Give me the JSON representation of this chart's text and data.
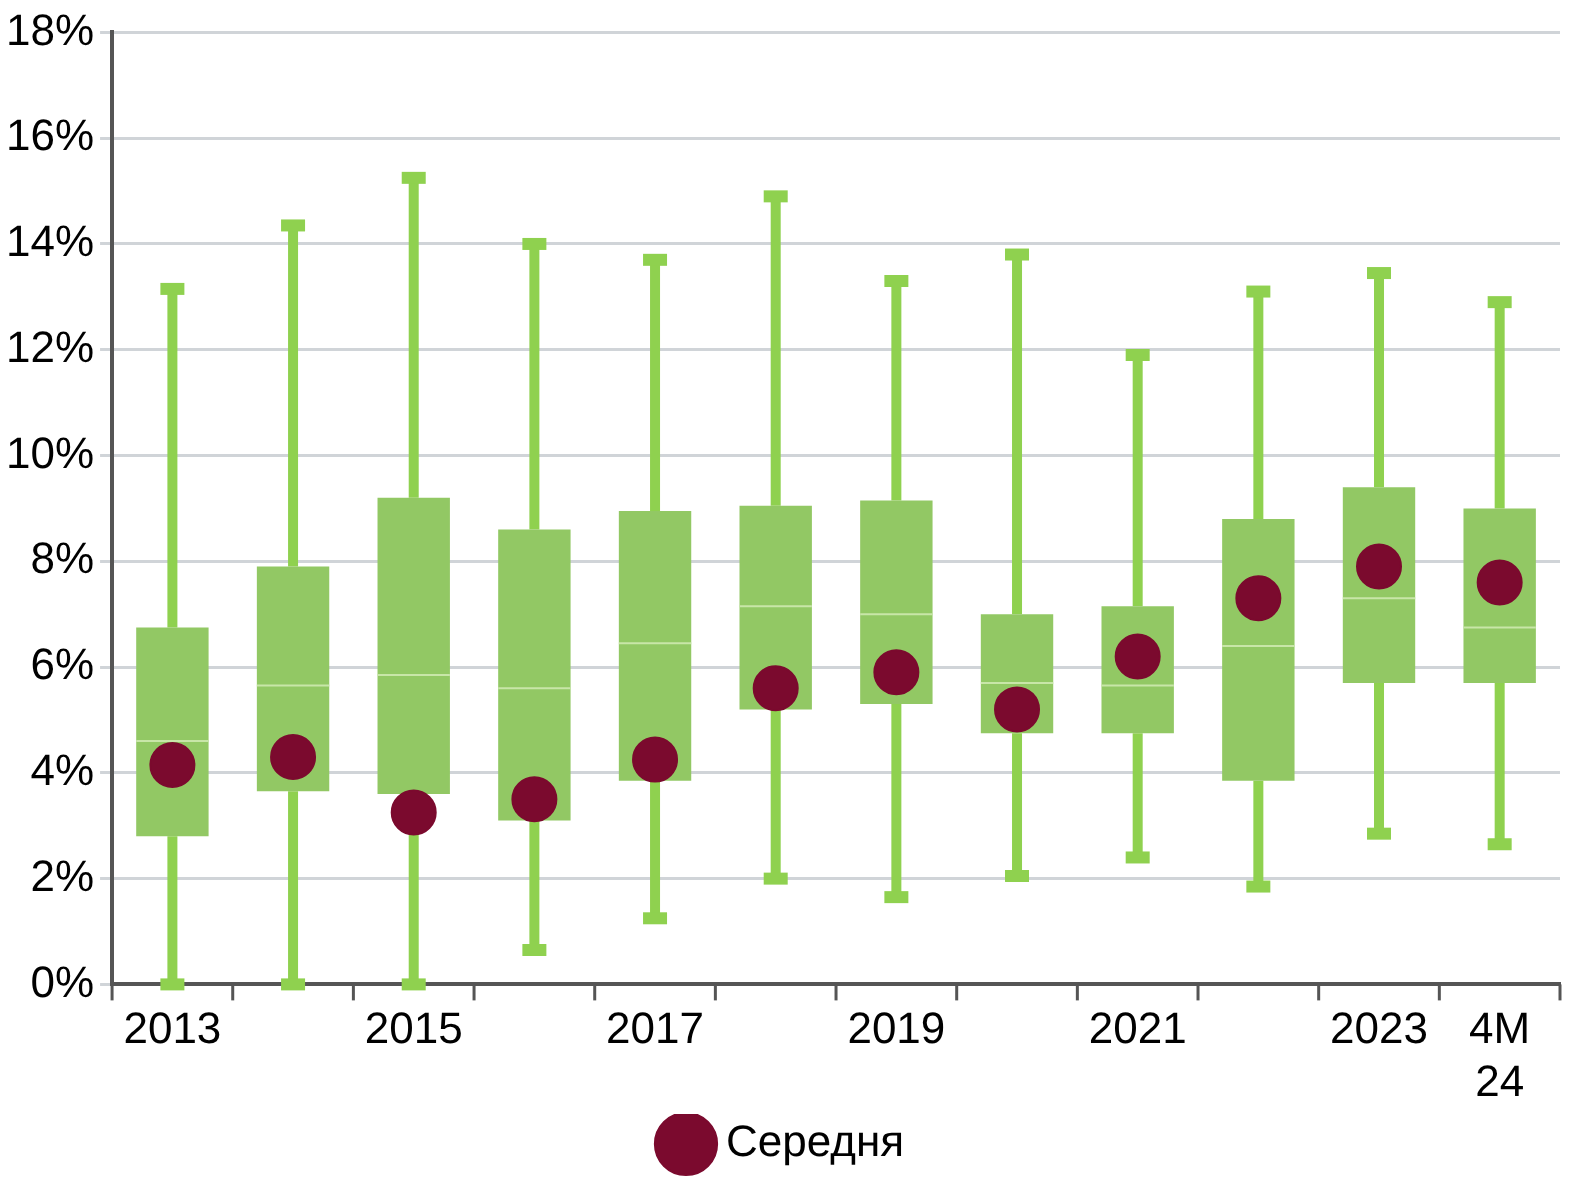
{
  "chart_data": {
    "type": "box",
    "categories": [
      "2013",
      null,
      "2015",
      null,
      "2017",
      null,
      "2019",
      null,
      "2021",
      null,
      "2023",
      "4M 24"
    ],
    "series": [
      {
        "type": "box",
        "color": "#92c864",
        "boxes": [
          {
            "low": 0,
            "q1": 2.8,
            "median": 4.6,
            "q3": 6.75,
            "high": 13.15
          },
          {
            "low": 0,
            "q1": 3.65,
            "median": 5.65,
            "q3": 7.9,
            "high": 14.35
          },
          {
            "low": 0,
            "q1": 3.6,
            "median": 5.85,
            "q3": 9.2,
            "high": 15.25
          },
          {
            "low": 0.65,
            "q1": 3.1,
            "median": 5.6,
            "q3": 8.6,
            "high": 14.0
          },
          {
            "low": 1.25,
            "q1": 3.85,
            "median": 6.45,
            "q3": 8.95,
            "high": 13.7
          },
          {
            "low": 2.0,
            "q1": 5.2,
            "median": 7.15,
            "q3": 9.05,
            "high": 14.9
          },
          {
            "low": 1.65,
            "q1": 5.3,
            "median": 7.0,
            "q3": 9.15,
            "high": 13.3
          },
          {
            "low": 2.05,
            "q1": 4.75,
            "median": 5.7,
            "q3": 7.0,
            "high": 13.8
          },
          {
            "low": 2.4,
            "q1": 4.75,
            "median": 5.65,
            "q3": 7.15,
            "high": 11.9
          },
          {
            "low": 1.85,
            "q1": 3.85,
            "median": 6.4,
            "q3": 8.8,
            "high": 13.1
          },
          {
            "low": 2.85,
            "q1": 5.7,
            "median": 7.3,
            "q3": 9.4,
            "high": 13.45
          },
          {
            "low": 2.65,
            "q1": 5.7,
            "median": 6.75,
            "q3": 9.0,
            "high": 12.9
          }
        ]
      },
      {
        "type": "scatter",
        "name": "Середня",
        "color": "#7b0a2e",
        "values": [
          4.15,
          4.3,
          3.25,
          3.5,
          4.25,
          5.6,
          5.9,
          5.2,
          6.2,
          7.3,
          7.9,
          7.6
        ]
      }
    ],
    "ylim": [
      0,
      18
    ],
    "yticks": [
      {
        "value": 0,
        "label": "0%"
      },
      {
        "value": 2,
        "label": "2%"
      },
      {
        "value": 4,
        "label": "4%"
      },
      {
        "value": 6,
        "label": "6%"
      },
      {
        "value": 8,
        "label": "8%"
      },
      {
        "value": 10,
        "label": "10%"
      },
      {
        "value": 12,
        "label": "12%"
      },
      {
        "value": 14,
        "label": "14%"
      },
      {
        "value": 16,
        "label": "16%"
      },
      {
        "value": 18,
        "label": "18%"
      }
    ],
    "grid": "y",
    "legend": "bottom",
    "marker": "circle"
  }
}
